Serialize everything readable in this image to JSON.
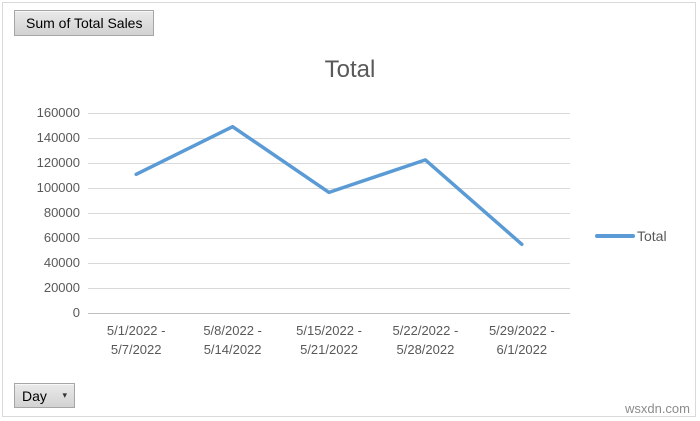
{
  "field_buttons": {
    "value_button": "Sum of Total Sales",
    "axis_button": "Day",
    "dropdown_glyph": "▾"
  },
  "watermark": "wsxdn.com",
  "chart_data": {
    "type": "line",
    "title": "Total",
    "categories": [
      "5/1/2022 - 5/7/2022",
      "5/8/2022 - 5/14/2022",
      "5/15/2022 - 5/21/2022",
      "5/22/2022 - 5/28/2022",
      "5/29/2022 - 6/1/2022"
    ],
    "series": [
      {
        "name": "Total",
        "color": "#5B9BD5",
        "values": [
          111000,
          149000,
          96500,
          122500,
          55000
        ]
      }
    ],
    "xlabel": "",
    "ylabel": "",
    "ylim": [
      0,
      160000
    ],
    "ytick_step": 20000,
    "grid": true,
    "legend_position": "right",
    "axis_text_color": "#595959",
    "gridline_color": "#D9D9D9",
    "axis_line_color": "#BFBFBF"
  }
}
